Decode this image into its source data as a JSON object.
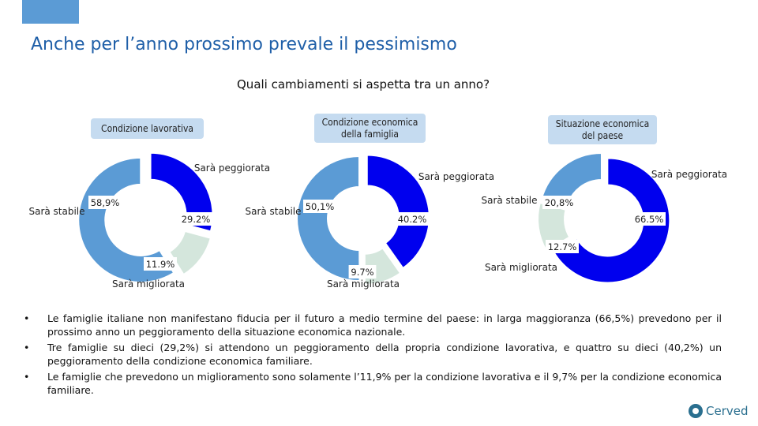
{
  "page": {
    "title": "Anche per l’anno prossimo prevale il pessimismo",
    "subtitle": "Quali cambiamenti si aspetta tra un anno?"
  },
  "colors": {
    "stabile": "#5b9bd5",
    "peggiorata": "#0000ee",
    "migliorata": "#d4e6dc",
    "chip": "#c5dbf0",
    "title": "#1f5fa8"
  },
  "chart_data": [
    {
      "type": "pie",
      "title": "Condizione lavorativa",
      "slices": [
        {
          "label": "Sarà peggiorata",
          "value": 29.2,
          "display": "29.2%"
        },
        {
          "label": "Sarà migliorata",
          "value": 11.9,
          "display": "11.9%"
        },
        {
          "label": "Sarà stabile",
          "value": 58.9,
          "display": "58,9%"
        }
      ]
    },
    {
      "type": "pie",
      "title": "Condizione economica della famiglia",
      "slices": [
        {
          "label": "Sarà peggiorata",
          "value": 40.2,
          "display": "40.2%"
        },
        {
          "label": "Sarà migliorata",
          "value": 9.7,
          "display": "9.7%"
        },
        {
          "label": "Sarà stabile",
          "value": 50.1,
          "display": "50,1%"
        }
      ]
    },
    {
      "type": "pie",
      "title": "Situazione economica del paese",
      "slices": [
        {
          "label": "Sarà peggiorata",
          "value": 66.5,
          "display": "66.5%"
        },
        {
          "label": "Sarà migliorata",
          "value": 12.7,
          "display": "12.7%"
        },
        {
          "label": "Sarà stabile",
          "value": 20.8,
          "display": "20,8%"
        }
      ]
    }
  ],
  "bullets": [
    "Le famiglie italiane non manifestano fiducia per il futuro a medio termine del paese: in larga maggioranza (66,5%) prevedono per il prossimo anno un peggioramento della situazione economica nazionale.",
    "Tre famiglie su dieci (29,2%) si attendono un peggioramento della propria condizione lavorativa, e quattro su dieci (40,2%) un peggioramento della condizione economica familiare.",
    "Le famiglie che prevedono un miglioramento sono solamente l’11,9% per la condizione lavorativa e il 9,7% per la condizione economica familiare."
  ],
  "logo": {
    "text": "Cerved"
  }
}
